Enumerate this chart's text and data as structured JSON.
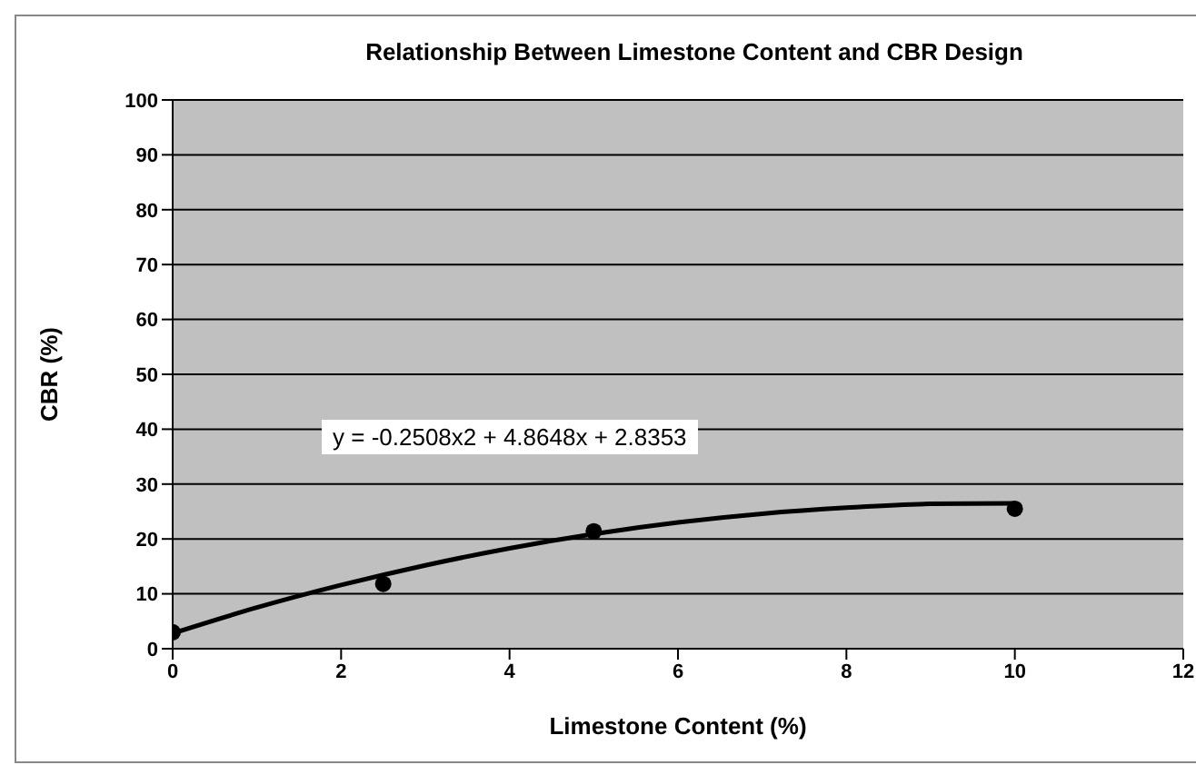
{
  "chart_data": {
    "type": "scatter",
    "title": "Relationship Between Limestone Content and CBR Design",
    "xlabel": "Limestone Content (%)",
    "ylabel": "CBR (%)",
    "annotations": [
      "y = -0.2508x2 + 4.8648x + 2.8353"
    ],
    "series": [
      {
        "color": "#000000",
        "x": [
          0,
          2.5,
          5,
          10
        ],
        "values": [
          3,
          11.8,
          21.4,
          25.5
        ],
        "marker": "circle"
      },
      {
        "type": "line",
        "color": "#000000",
        "x": [
          0,
          1,
          2,
          3,
          4,
          5,
          6,
          7,
          8,
          9,
          10
        ],
        "values": [
          2.8,
          7.5,
          11.6,
          15.2,
          18.3,
          20.9,
          23,
          24.6,
          25.7,
          26.4,
          26.5
        ],
        "marker": "none",
        "line_style": "solid"
      }
    ],
    "xlim": [
      0,
      12
    ],
    "xticks": [
      0,
      2,
      4,
      6,
      8,
      10,
      12
    ],
    "ylim": [
      0,
      100
    ],
    "yticks": [
      0,
      10,
      20,
      30,
      40,
      50,
      60,
      70,
      80,
      90,
      100
    ],
    "grid": "y"
  }
}
